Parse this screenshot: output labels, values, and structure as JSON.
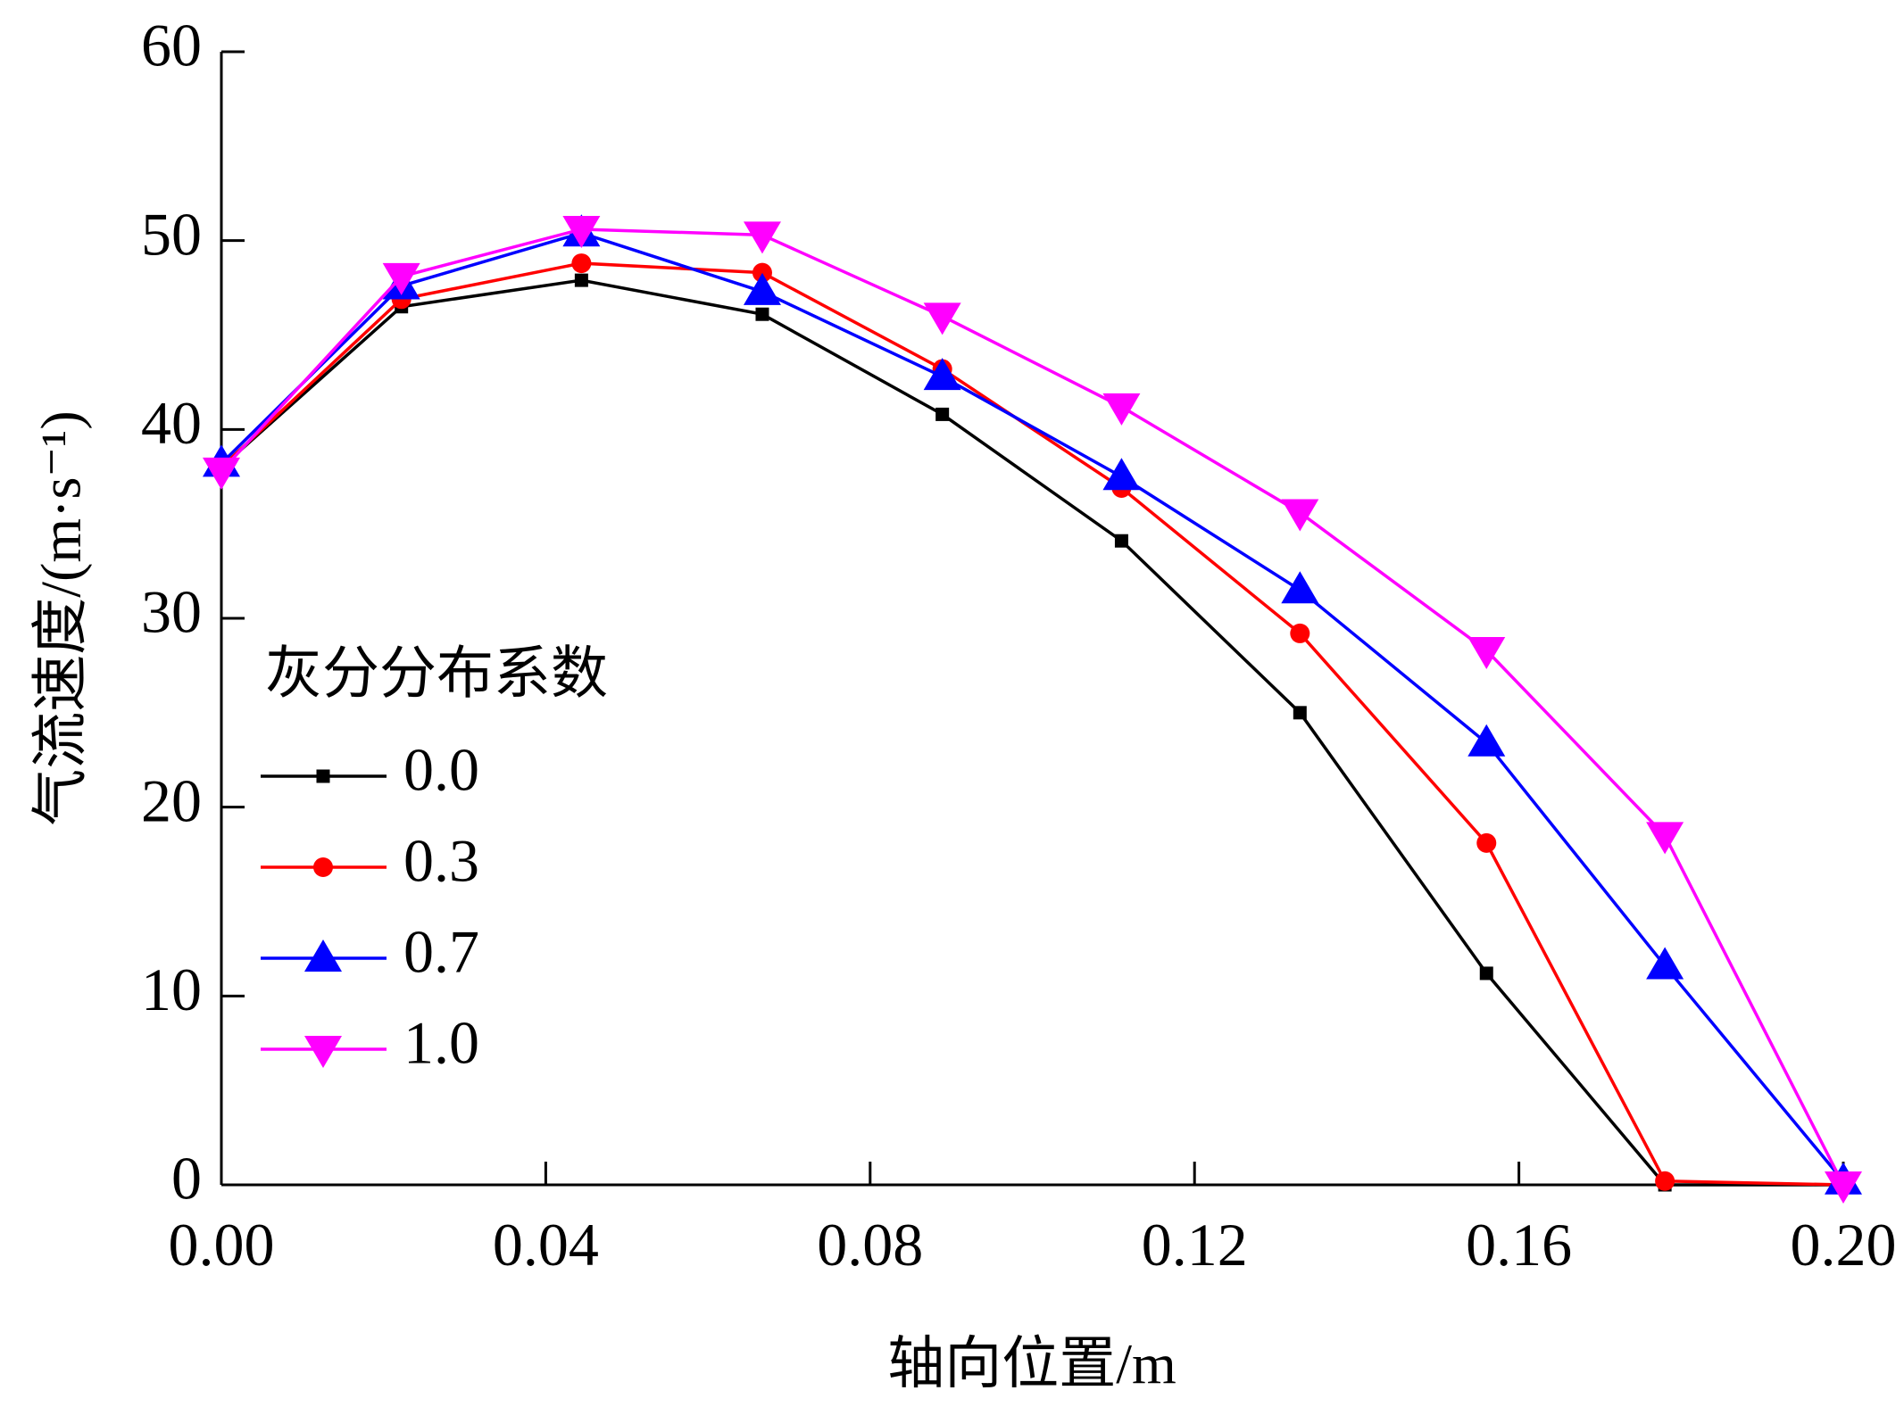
{
  "chart_data": {
    "type": "line",
    "xlabel": "轴向位置/m",
    "ylabel": "气流速度/(m·s⁻¹)",
    "legend_title": "灰分分布系数",
    "legend_position": "left",
    "x": [
      0,
      0.0222,
      0.0444,
      0.0667,
      0.0889,
      0.111,
      0.133,
      0.156,
      0.178,
      0.2
    ],
    "series": [
      {
        "name": "0.0",
        "color": "#000000",
        "marker": "square",
        "values": [
          38,
          46.5,
          47.9,
          46.1,
          40.8,
          34.1,
          25,
          11.2,
          0,
          0
        ]
      },
      {
        "name": "0.3",
        "color": "#ff0000",
        "marker": "circle",
        "values": [
          38,
          46.9,
          48.8,
          48.3,
          43.2,
          36.9,
          29.2,
          18.1,
          0.2,
          0
        ]
      },
      {
        "name": "0.7",
        "color": "#0000ff",
        "marker": "triangle-up",
        "values": [
          38.2,
          47.6,
          50.4,
          47.3,
          42.8,
          37.5,
          31.5,
          23.4,
          11.6,
          0.2
        ]
      },
      {
        "name": "1.0",
        "color": "#ff00ff",
        "marker": "triangle-down",
        "values": [
          37.8,
          48.1,
          50.6,
          50.3,
          46,
          41.2,
          35.6,
          28.3,
          18.5,
          0
        ]
      }
    ],
    "xlim": [
      0,
      0.2
    ],
    "xticks": [
      {
        "value": 0,
        "label": "0.00"
      },
      0.04,
      0.08,
      0.12,
      0.16,
      {
        "value": 0.2,
        "label": "0.20"
      }
    ],
    "ylim": [
      0,
      60
    ],
    "yticks": [
      0,
      10,
      20,
      30,
      40,
      50,
      60
    ]
  }
}
